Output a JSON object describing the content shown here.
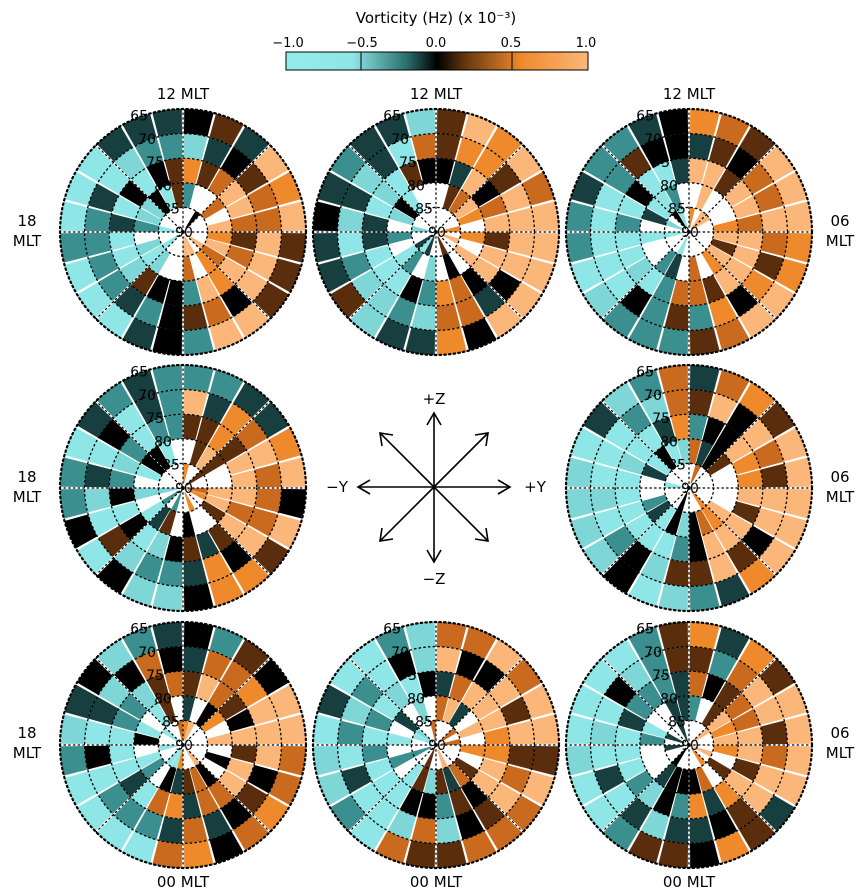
{
  "colorbar": {
    "title": "Vorticity (Hz) (x 10⁻³)",
    "ticks": [
      "−1.0",
      "−0.5",
      "0.0",
      "0.5",
      "1.0"
    ],
    "stops": [
      "#95ecec",
      "#8fe6e6",
      "#2a6f6f",
      "#000000",
      "#6b3a10",
      "#ef8a2c",
      "#fbb77a"
    ]
  },
  "labels": {
    "noon": "12 MLT",
    "dusk": [
      "18",
      "MLT"
    ],
    "dawn": [
      "06",
      "MLT"
    ],
    "midnight": "00 MLT",
    "latitudes": [
      "65",
      "70",
      "75",
      "80",
      "85",
      "90"
    ]
  },
  "compass": {
    "up": "+Z",
    "down": "−Z",
    "left": "−Y",
    "right": "+Y"
  },
  "dials": [
    {
      "id": "dial-neg-y-pos-z",
      "pattern": 1
    },
    {
      "id": "dial-pos-z",
      "pattern": 2
    },
    {
      "id": "dial-pos-y-pos-z",
      "pattern": 3
    },
    {
      "id": "dial-neg-y",
      "pattern": 4
    },
    {
      "id": "dial-pos-y",
      "pattern": 5
    },
    {
      "id": "dial-neg-y-neg-z",
      "pattern": 6
    },
    {
      "id": "dial-neg-z",
      "pattern": 7
    },
    {
      "id": "dial-pos-y-neg-z",
      "pattern": 8
    }
  ],
  "colors": {
    "cyan": "#8fe6e6",
    "orange": "#ef8a2c",
    "light_orange": "#fbb77a",
    "black": "#000000",
    "dark_teal": "#1f5555"
  }
}
